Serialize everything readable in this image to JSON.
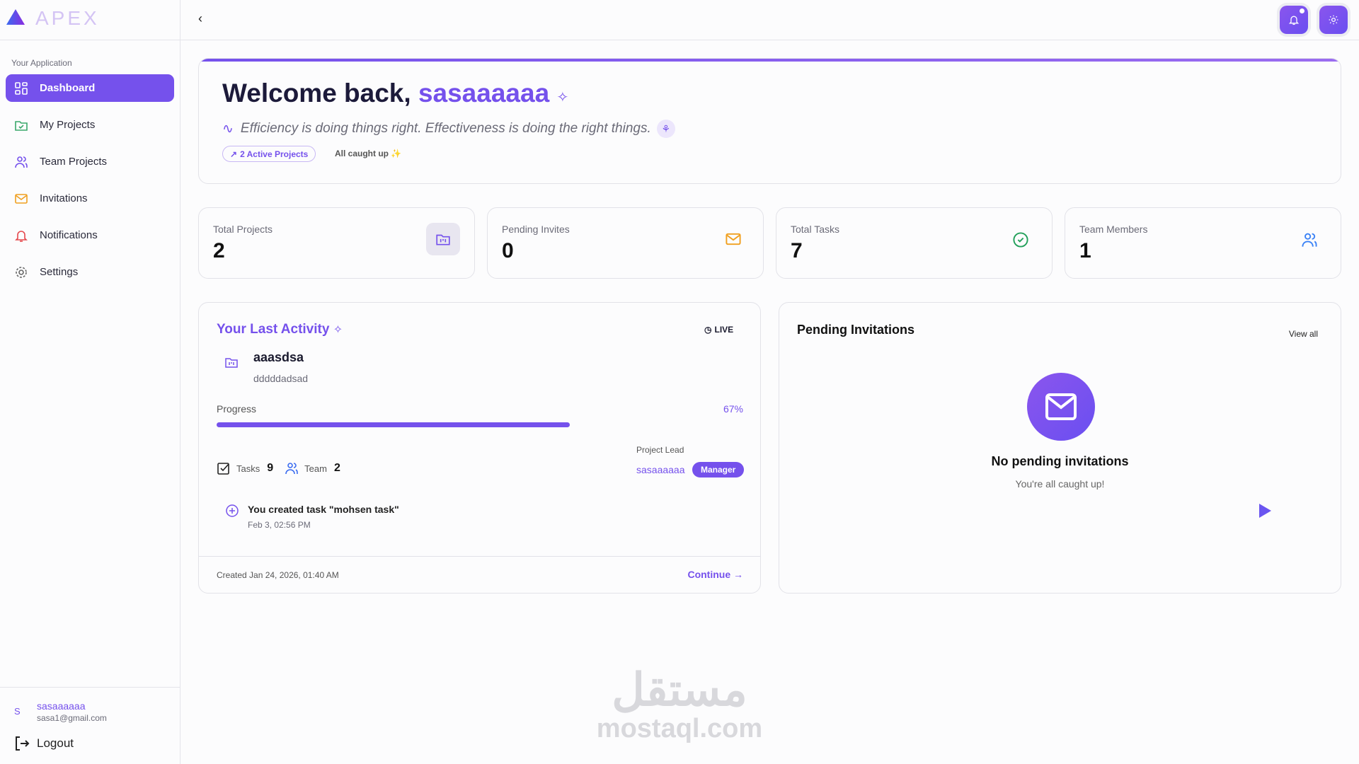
{
  "brand": {
    "name": "APEX"
  },
  "sidebar": {
    "section": "Your Application",
    "items": [
      {
        "label": "Dashboard",
        "icon": "dashboard-icon"
      },
      {
        "label": "My Projects",
        "icon": "folder-check-icon"
      },
      {
        "label": "Team Projects",
        "icon": "users-icon"
      },
      {
        "label": "Invitations",
        "icon": "mail-icon"
      },
      {
        "label": "Notifications",
        "icon": "bell-icon"
      },
      {
        "label": "Settings",
        "icon": "gear-icon"
      }
    ],
    "user": {
      "initial": "S",
      "name": "sasaaaaaa",
      "email": "sasa1@gmail.com"
    },
    "logout": "Logout"
  },
  "welcome": {
    "greeting": "Welcome back,",
    "username": "sasaaaaaa",
    "quote": "Efficiency is doing things right. Effectiveness is doing the right things.",
    "badge": "2 Active Projects",
    "status": "All caught up"
  },
  "stats": [
    {
      "label": "Total Projects",
      "value": "2",
      "icon": "folder-icon"
    },
    {
      "label": "Pending Invites",
      "value": "0",
      "icon": "mail-icon"
    },
    {
      "label": "Total Tasks",
      "value": "7",
      "icon": "check-circle-icon"
    },
    {
      "label": "Team Members",
      "value": "1",
      "icon": "users-icon"
    }
  ],
  "activity": {
    "title": "Your Last Activity",
    "live": "LIVE",
    "project": "aaasdsa",
    "description": "dddddadsad",
    "progress_label": "Progress",
    "progress_text": "67%",
    "progress": 0.67,
    "tasks_label": "Tasks",
    "tasks": "9",
    "team_label": "Team",
    "team": "2",
    "lead_label": "Project Lead",
    "lead": "sasaaaaaa",
    "role": "Manager",
    "event": "You created task \"mohsen task\"",
    "event_time": "Feb 3, 02:56 PM",
    "created": "Created Jan 24, 2026, 01:40 AM",
    "continue": "Continue"
  },
  "invitations": {
    "title": "Pending Invitations",
    "view_all": "View all",
    "empty_title": "No pending invitations",
    "empty_sub": "You're all caught up!"
  },
  "watermark": {
    "arabic": "مستقل",
    "latin": "mostaql.com"
  },
  "colors": {
    "accent": "#7551ec",
    "green": "#22a05a",
    "orange": "#f0a020",
    "blue": "#3b82f6"
  }
}
